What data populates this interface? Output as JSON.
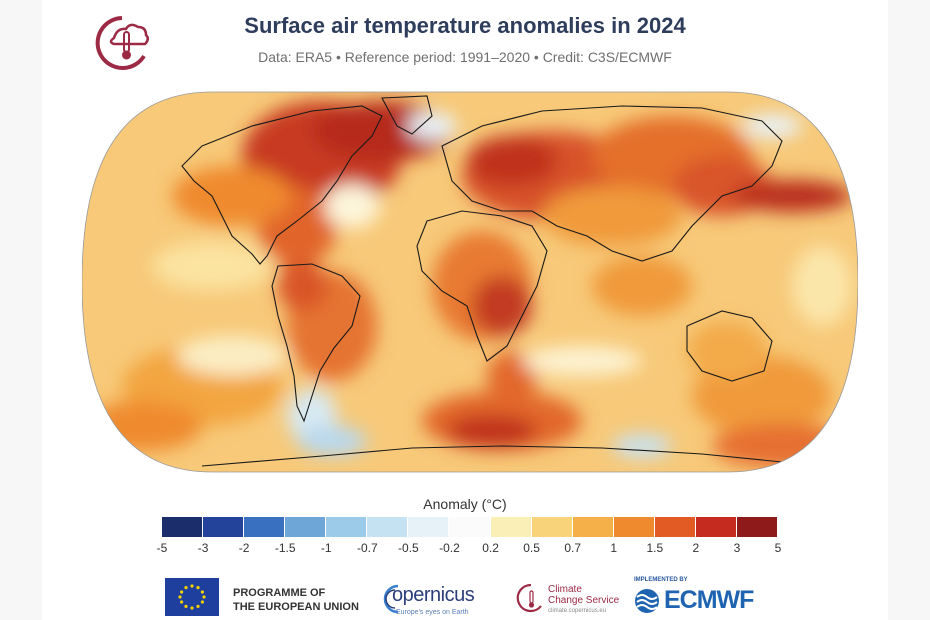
{
  "header": {
    "title": "Surface air temperature anomalies in 2024",
    "subtitle": "Data: ERA5 • Reference period: 1991–2020 • Credit: C3S/ECMWF"
  },
  "legend": {
    "title": "Anomaly (°C)",
    "ticks": [
      "-5",
      "-3",
      "-2",
      "-1.5",
      "-1",
      "-0.7",
      "-0.5",
      "-0.2",
      "0.2",
      "0.5",
      "0.7",
      "1",
      "1.5",
      "2",
      "3",
      "5"
    ],
    "colors": [
      "#1c2d6b",
      "#23439a",
      "#3a70c0",
      "#6ea6d8",
      "#9ccbea",
      "#c5e2f2",
      "#e6f2f8",
      "#ffffff",
      "#fbefb8",
      "#f8d37a",
      "#f5b04a",
      "#ef8a2e",
      "#e35b24",
      "#c52c1f",
      "#8e1a1a"
    ]
  },
  "map": {
    "projection": "Robinson",
    "baseline_color": "#f7c979"
  },
  "footer": {
    "eu_line1": "PROGRAMME OF",
    "eu_line2": "THE EUROPEAN UNION",
    "copernicus_word": "opernicus",
    "copernicus_tagline": "Europe's eyes on Earth",
    "c3s_line1": "Climate",
    "c3s_line2": "Change Service",
    "c3s_url": "climate.copernicus.eu",
    "ecmwf_small": "IMPLEMENTED BY",
    "ecmwf_word": "ECMWF"
  },
  "colors": {
    "title": "#2e3d5c",
    "brand": "#9c2a45",
    "ecmwf": "#1f64b0",
    "eu": "#1f3f9e"
  }
}
